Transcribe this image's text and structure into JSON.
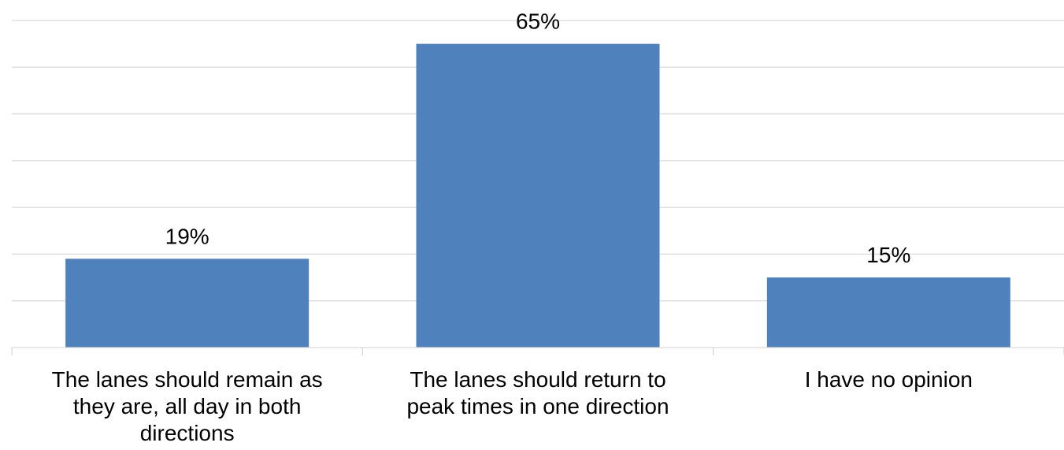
{
  "chart_data": {
    "type": "bar",
    "categories": [
      [
        "The lanes should remain as",
        "they are, all day in both",
        "directions"
      ],
      [
        "The lanes should return to",
        "peak times in one direction"
      ],
      [
        "I have no opinion"
      ]
    ],
    "values": [
      19,
      65,
      15
    ],
    "data_labels": [
      "19%",
      "65%",
      "15%"
    ],
    "title": "",
    "xlabel": "",
    "ylabel": "",
    "ylim": [
      0,
      70
    ],
    "grid": true,
    "grid_step": 10,
    "legend": "none",
    "colors": {
      "bar": "#4f81bd",
      "grid": "#d9d9d9",
      "text": "#000000"
    }
  }
}
